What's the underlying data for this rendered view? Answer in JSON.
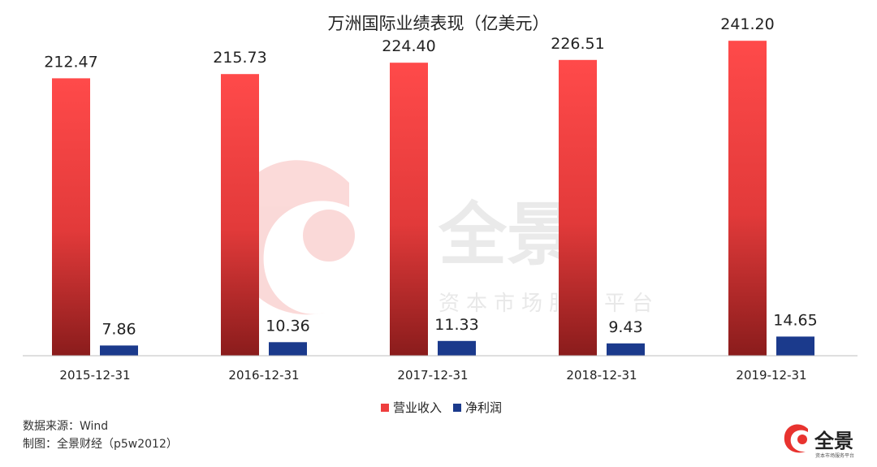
{
  "chart_data": {
    "type": "bar",
    "title": "万洲国际业绩表现（亿美元）",
    "categories": [
      "2015-12-31",
      "2016-12-31",
      "2017-12-31",
      "2018-12-31",
      "2019-12-31"
    ],
    "series": [
      {
        "name": "营业收入",
        "values": [
          212.47,
          215.73,
          224.4,
          226.51,
          241.2
        ],
        "labels": [
          "212.47",
          "215.73",
          "224.40",
          "226.51",
          "241.20"
        ],
        "color": "#ee3e3e"
      },
      {
        "name": "净利润",
        "values": [
          7.86,
          10.36,
          11.33,
          9.43,
          14.65
        ],
        "labels": [
          "7.86",
          "10.36",
          "11.33",
          "9.43",
          "14.65"
        ],
        "color": "#1b3a8c"
      }
    ],
    "ylim": [
      0,
      260
    ],
    "grid": false,
    "legend_position": "bottom-center"
  },
  "footer": {
    "source": "数据来源：Wind",
    "credit": "制图：全景财经（p5w2012）"
  },
  "watermark": {
    "text": "全景",
    "subtext": "资本市场服务平台"
  },
  "logo": {
    "text": "全景",
    "subtext": "资本市场服务平台"
  },
  "colors": {
    "revenue_top": "#ff4a4a",
    "revenue_bottom": "#8a1c1c",
    "profit": "#1b3a8c",
    "axis": "#bfbfbf",
    "watermark_red": "#e8332f"
  }
}
